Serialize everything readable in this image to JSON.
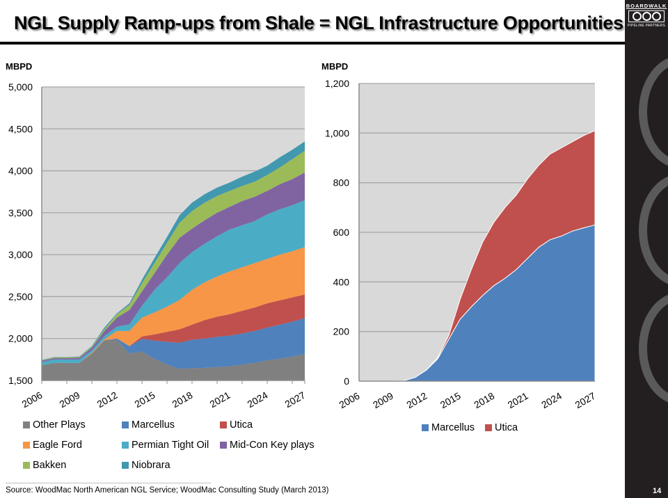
{
  "slide": {
    "title": "NGL Supply Ramp-ups from Shale = NGL Infrastructure Opportunities",
    "source": "Source: WoodMac North American NGL Service; WoodMac Consulting Study (March 2013)",
    "page_number": "14",
    "logo": {
      "brand": "BOARDWALK",
      "tagline": "PIPELINE PARTNERS"
    }
  },
  "chart_data": [
    {
      "type": "area",
      "stacked": true,
      "title": "",
      "ylabel": "MBPD",
      "xlabel": "",
      "ylim": [
        1500,
        5000
      ],
      "yticks": [
        1500,
        2000,
        2500,
        3000,
        3500,
        4000,
        4500,
        5000
      ],
      "ytick_labels": [
        "1,500",
        "2,000",
        "2,500",
        "3,000",
        "3,500",
        "4,000",
        "4,500",
        "5,000"
      ],
      "xtick_labels": [
        "2006",
        "2009",
        "2012",
        "2015",
        "2018",
        "2021",
        "2024",
        "2027"
      ],
      "grid": true,
      "legend_position": "bottom",
      "x": [
        2006,
        2007,
        2008,
        2009,
        2010,
        2011,
        2012,
        2013,
        2014,
        2015,
        2016,
        2017,
        2018,
        2019,
        2020,
        2021,
        2022,
        2023,
        2024,
        2025,
        2026,
        2027
      ],
      "series": [
        {
          "name": "Other Plays",
          "color": "#808080",
          "values": [
            1680,
            1710,
            1710,
            1710,
            1820,
            1980,
            1985,
            1820,
            1845,
            1760,
            1690,
            1640,
            1645,
            1650,
            1660,
            1670,
            1690,
            1710,
            1740,
            1760,
            1785,
            1815
          ]
        },
        {
          "name": "Marcellus",
          "color": "#4f81bd",
          "values": [
            0,
            0,
            0,
            0,
            0,
            0,
            15,
            90,
            150,
            215,
            270,
            310,
            340,
            350,
            360,
            365,
            370,
            380,
            390,
            405,
            415,
            430
          ]
        },
        {
          "name": "Utica",
          "color": "#c0504d",
          "values": [
            0,
            0,
            0,
            0,
            0,
            0,
            0,
            0,
            30,
            75,
            120,
            160,
            180,
            220,
            240,
            255,
            270,
            280,
            290,
            290,
            290,
            280
          ]
        },
        {
          "name": "Eagle Ford",
          "color": "#f79646",
          "values": [
            0,
            0,
            0,
            0,
            10,
            10,
            90,
            180,
            225,
            260,
            300,
            350,
            415,
            450,
            480,
            510,
            520,
            530,
            530,
            545,
            550,
            565
          ]
        },
        {
          "name": "Permian Tight Oil",
          "color": "#4bacc6",
          "values": [
            40,
            40,
            40,
            40,
            30,
            40,
            50,
            80,
            140,
            270,
            350,
            440,
            450,
            460,
            480,
            500,
            500,
            500,
            530,
            540,
            550,
            560
          ]
        },
        {
          "name": "Mid-Con Key plays",
          "color": "#8064a2",
          "values": [
            15,
            15,
            15,
            20,
            30,
            60,
            110,
            170,
            170,
            200,
            270,
            300,
            280,
            280,
            280,
            270,
            290,
            290,
            280,
            300,
            310,
            330
          ]
        },
        {
          "name": "Bakken",
          "color": "#9bbb59",
          "values": [
            5,
            10,
            10,
            10,
            10,
            20,
            40,
            60,
            100,
            120,
            140,
            180,
            210,
            210,
            200,
            190,
            180,
            180,
            190,
            200,
            240,
            260
          ]
        },
        {
          "name": "Niobrara",
          "color": "#4198af",
          "values": [
            5,
            5,
            5,
            5,
            10,
            20,
            10,
            20,
            40,
            60,
            70,
            90,
            100,
            100,
            100,
            100,
            110,
            120,
            110,
            120,
            110,
            110
          ]
        }
      ]
    },
    {
      "type": "area",
      "stacked": true,
      "title": "",
      "ylabel": "MBPD",
      "xlabel": "",
      "ylim": [
        0,
        1200
      ],
      "yticks": [
        0,
        200,
        400,
        600,
        800,
        1000,
        1200
      ],
      "ytick_labels": [
        "0",
        "200",
        "400",
        "600",
        "800",
        "1,000",
        "1,200"
      ],
      "xtick_labels": [
        "2006",
        "2009",
        "2012",
        "2015",
        "2018",
        "2021",
        "2024",
        "2027"
      ],
      "grid": true,
      "legend_position": "bottom",
      "x": [
        2006,
        2007,
        2008,
        2009,
        2010,
        2011,
        2012,
        2013,
        2014,
        2015,
        2016,
        2017,
        2018,
        2019,
        2020,
        2021,
        2022,
        2023,
        2024,
        2025,
        2026,
        2027
      ],
      "series": [
        {
          "name": "Marcellus",
          "color": "#4f81bd",
          "values": [
            0,
            0,
            0,
            0,
            2,
            15,
            45,
            90,
            170,
            250,
            300,
            345,
            385,
            415,
            450,
            495,
            540,
            570,
            585,
            605,
            618,
            630
          ]
        },
        {
          "name": "Utica",
          "color": "#c0504d",
          "values": [
            0,
            0,
            0,
            0,
            0,
            0,
            0,
            5,
            15,
            80,
            150,
            215,
            255,
            285,
            300,
            320,
            330,
            345,
            355,
            360,
            372,
            380
          ]
        }
      ]
    }
  ]
}
